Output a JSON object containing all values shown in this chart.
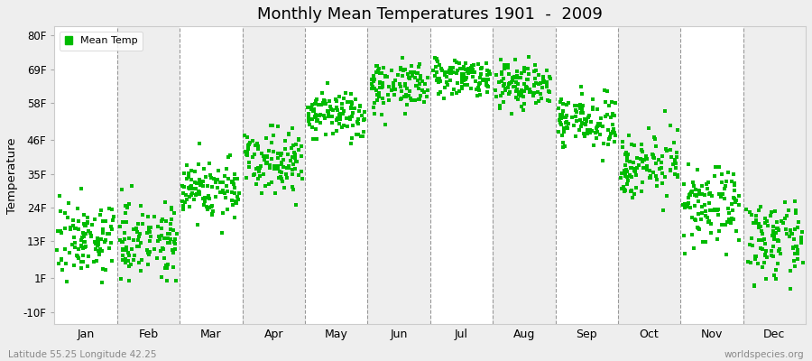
{
  "title": "Monthly Mean Temperatures 1901  -  2009",
  "ylabel": "Temperature",
  "ytick_labels": [
    "-10F",
    "1F",
    "13F",
    "24F",
    "35F",
    "46F",
    "58F",
    "69F",
    "80F"
  ],
  "ytick_values": [
    -10,
    1,
    13,
    24,
    35,
    46,
    58,
    69,
    80
  ],
  "ylim": [
    -14,
    83
  ],
  "xlim": [
    0,
    12
  ],
  "months": [
    "Jan",
    "Feb",
    "Mar",
    "Apr",
    "May",
    "Jun",
    "Jul",
    "Aug",
    "Sep",
    "Oct",
    "Nov",
    "Dec"
  ],
  "dot_color": "#00bb00",
  "bg_color": "#eeeeee",
  "alt_bg_color": "#f8f8f8",
  "legend_label": "Mean Temp",
  "bottom_left": "Latitude 55.25 Longitude 42.25",
  "bottom_right": "worldspecies.org",
  "monthly_means_F": [
    14,
    14,
    30,
    40,
    54,
    64,
    67,
    64,
    52,
    38,
    24,
    13
  ],
  "monthly_std_F": [
    6,
    6,
    5,
    5,
    4,
    4,
    3,
    4,
    4,
    5,
    6,
    6
  ],
  "n_years": 109
}
